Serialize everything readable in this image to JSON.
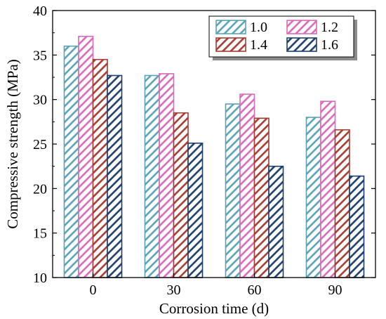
{
  "chart_data": {
    "type": "bar",
    "title": "",
    "xlabel": "Corrosion time (d)",
    "ylabel": "Compressive strength (MPa)",
    "ylim": [
      10,
      40
    ],
    "yticks": [
      "10",
      "15",
      "20",
      "25",
      "30",
      "35",
      "40"
    ],
    "categories": [
      "0",
      "30",
      "60",
      "90"
    ],
    "series": [
      {
        "name": "1.0",
        "values": [
          36.0,
          32.7,
          29.5,
          28.0
        ],
        "color": "#5aa3b4",
        "hatch": "diag-right"
      },
      {
        "name": "1.2",
        "values": [
          37.1,
          32.9,
          30.6,
          29.8
        ],
        "color": "#d96ab8",
        "hatch": "diag-right"
      },
      {
        "name": "1.4",
        "values": [
          34.5,
          28.5,
          27.9,
          26.6
        ],
        "color": "#a53c34",
        "hatch": "diag-right"
      },
      {
        "name": "1.6",
        "values": [
          32.7,
          25.1,
          22.5,
          21.4
        ],
        "color": "#1e3e6a",
        "hatch": "diag-right"
      }
    ],
    "grid": false,
    "legend_position": "top-right",
    "legend_columns": 2
  }
}
